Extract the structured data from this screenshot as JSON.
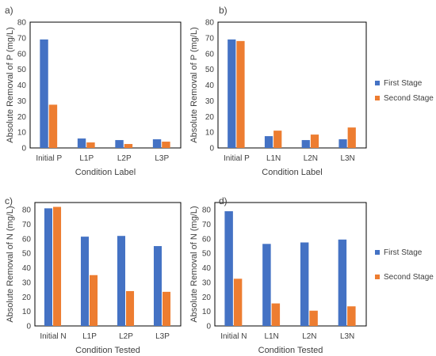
{
  "colors": {
    "first": "#4472C4",
    "second": "#ED7D31"
  },
  "chart_data": [
    {
      "panel": "a)",
      "type": "bar",
      "categories": [
        "Initial P",
        "L1P",
        "L2P",
        "L3P"
      ],
      "series": [
        {
          "name": "First Stage",
          "values": [
            69,
            6,
            5,
            5.5
          ]
        },
        {
          "name": "Second Stage",
          "values": [
            27.5,
            3.5,
            2.5,
            4
          ]
        }
      ],
      "xlabel": "Condition Label",
      "ylabel": "Absolute Removal of P (mg/L)",
      "ylim": [
        0,
        80
      ],
      "yticks": [
        0,
        10,
        20,
        30,
        40,
        50,
        60,
        70,
        80
      ],
      "legend": null
    },
    {
      "panel": "b)",
      "type": "bar",
      "categories": [
        "Initial P",
        "L1N",
        "L2N",
        "L3N"
      ],
      "series": [
        {
          "name": "First Stage",
          "values": [
            69,
            7.5,
            5,
            5.5
          ]
        },
        {
          "name": "Second Stage",
          "values": [
            68,
            11,
            8.5,
            13
          ]
        }
      ],
      "xlabel": "Condition Label",
      "ylabel": "Absolute Removal of P (mg/L)",
      "ylim": [
        0,
        80
      ],
      "yticks": [
        0,
        10,
        20,
        30,
        40,
        50,
        60,
        70,
        80
      ],
      "legend": "right"
    },
    {
      "panel": "c)",
      "type": "bar",
      "categories": [
        "Initial N",
        "L1P",
        "L2P",
        "L3P"
      ],
      "series": [
        {
          "name": "First Stage",
          "values": [
            81,
            61.5,
            62,
            55
          ]
        },
        {
          "name": "Second Stage",
          "values": [
            82,
            35,
            24,
            23.5
          ]
        }
      ],
      "xlabel": "Condition Tested",
      "ylabel": "Absolute Removal of N (mg/L)",
      "ylim": [
        0,
        85
      ],
      "yticks": [
        0,
        10,
        20,
        30,
        40,
        50,
        60,
        70,
        80
      ],
      "legend": null
    },
    {
      "panel": "d)",
      "type": "bar",
      "categories": [
        "Initial N",
        "L1N",
        "L2N",
        "L3N"
      ],
      "series": [
        {
          "name": "First Stage",
          "values": [
            79,
            56.5,
            57.5,
            59.5
          ]
        },
        {
          "name": "Second Stage",
          "values": [
            32.5,
            15.5,
            10.5,
            13.5
          ]
        }
      ],
      "xlabel": "Condition Tested",
      "ylabel": "Absolute Removal of N (mg/L)",
      "ylim": [
        0,
        85
      ],
      "yticks": [
        0,
        10,
        20,
        30,
        40,
        50,
        60,
        70,
        80
      ],
      "legend": "right"
    }
  ]
}
